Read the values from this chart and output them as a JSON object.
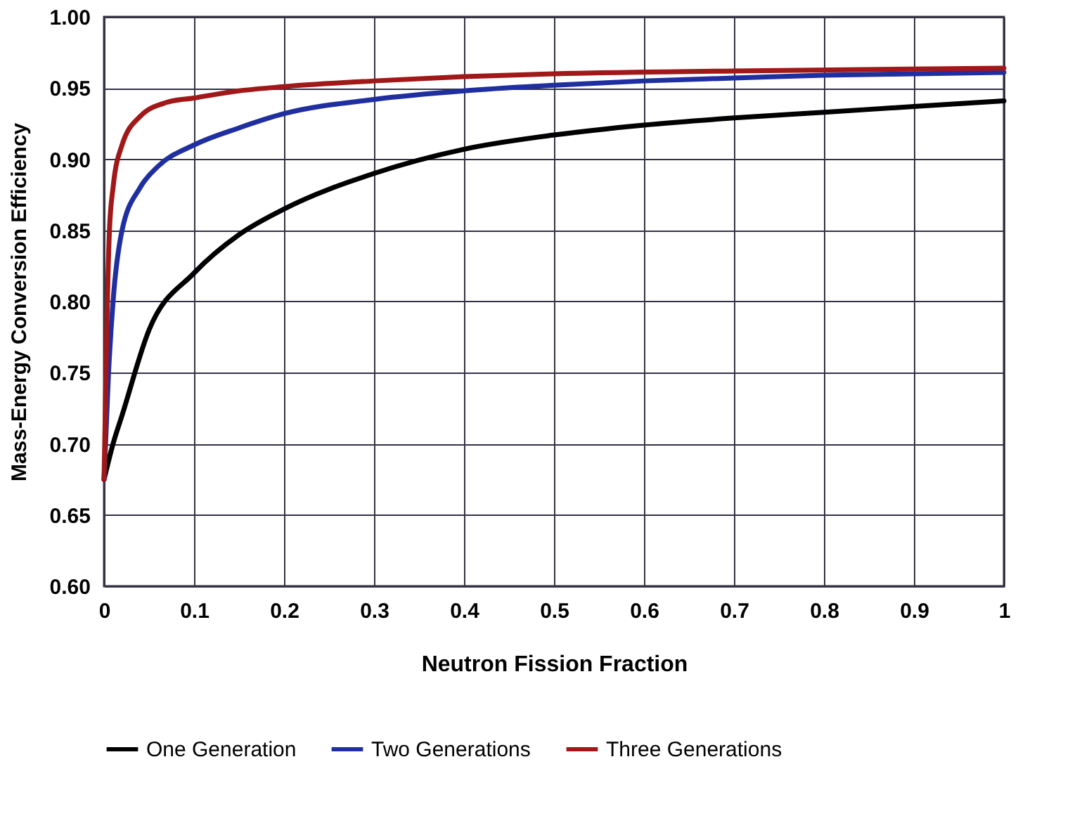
{
  "chart_data": {
    "type": "line",
    "xlabel": "Neutron Fission Fraction",
    "ylabel": "Mass-Energy Conversion Efficiency",
    "xlim": [
      0,
      1
    ],
    "xticks": [
      0,
      0.1,
      0.2,
      0.3,
      0.4,
      0.5,
      0.6,
      0.7,
      0.8,
      0.9,
      1
    ],
    "ylim": [
      0.6,
      1.0
    ],
    "yticks": [
      {
        "value": 0.6,
        "label": "0.60"
      },
      {
        "value": 0.65,
        "label": "0.65"
      },
      {
        "value": 0.7,
        "label": "0.70"
      },
      {
        "value": 0.75,
        "label": "0.75"
      },
      {
        "value": 0.8,
        "label": "0.80"
      },
      {
        "value": 0.85,
        "label": "0.85"
      },
      {
        "value": 0.9,
        "label": "0.90"
      },
      {
        "value": 0.95,
        "label": "0.95"
      },
      {
        "value": 1.0,
        "label": "1.00"
      }
    ],
    "grid": true,
    "legend": "bottom",
    "marker": "none",
    "line_style": "solid",
    "series": [
      {
        "name": "One Generation",
        "color": "#000000",
        "x": [
          0,
          0.01,
          0.02,
          0.05,
          0.1,
          0.15,
          0.2,
          0.3,
          0.4,
          0.5,
          0.6,
          0.7,
          0.8,
          0.9,
          1
        ],
        "values": [
          0.675,
          0.7,
          0.72,
          0.78,
          0.82,
          0.847,
          0.865,
          0.89,
          0.907,
          0.917,
          0.924,
          0.929,
          0.933,
          0.937,
          0.941
        ]
      },
      {
        "name": "Two Generations",
        "color": "#1f2f9f",
        "x": [
          0,
          0.005,
          0.01,
          0.02,
          0.04,
          0.06,
          0.1,
          0.15,
          0.2,
          0.3,
          0.4,
          0.5,
          0.6,
          0.7,
          0.8,
          0.9,
          1
        ],
        "values": [
          0.675,
          0.75,
          0.8,
          0.85,
          0.88,
          0.895,
          0.91,
          0.922,
          0.932,
          0.942,
          0.948,
          0.952,
          0.955,
          0.957,
          0.959,
          0.96,
          0.961
        ]
      },
      {
        "name": "Three Generations",
        "color": "#a01818",
        "x": [
          0,
          0.003,
          0.006,
          0.01,
          0.02,
          0.04,
          0.07,
          0.1,
          0.15,
          0.2,
          0.3,
          0.4,
          0.5,
          0.7,
          1
        ],
        "values": [
          0.675,
          0.78,
          0.85,
          0.88,
          0.91,
          0.93,
          0.94,
          0.943,
          0.948,
          0.951,
          0.955,
          0.958,
          0.96,
          0.962,
          0.964
        ]
      }
    ]
  }
}
